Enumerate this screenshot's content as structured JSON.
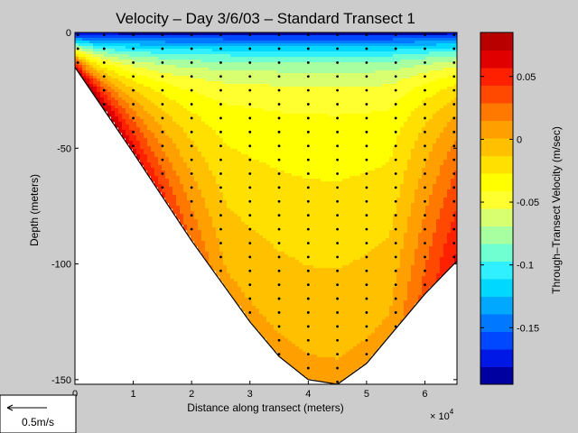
{
  "chart_data": {
    "type": "heatmap",
    "title": "Velocity – Day 3/6/03 – Standard Transect 1",
    "xlabel": "Distance along transect (meters)",
    "ylabel": "Depth (meters)",
    "x_multiplier_label": "× 10",
    "x_multiplier_exponent": "4",
    "xlim": [
      0,
      6.55
    ],
    "ylim": [
      -152,
      0
    ],
    "xticks": [
      0,
      1,
      2,
      3,
      4,
      5,
      6
    ],
    "xtick_labels": [
      "0",
      "1",
      "2",
      "3",
      "4",
      "5",
      "6"
    ],
    "yticks": [
      0,
      -50,
      -100,
      -150
    ],
    "ytick_labels": [
      "0",
      "-50",
      "-100",
      "-150"
    ],
    "colorbar": {
      "label": "Through–Transect Velocity (m/sec)",
      "range": [
        -0.195,
        0.085
      ],
      "ticks": [
        0.05,
        0,
        -0.05,
        -0.1,
        -0.15
      ],
      "tick_labels": [
        "0.05",
        "0",
        "-0.05",
        "-0.1",
        "-0.15"
      ],
      "levels": [
        "#0000a0",
        "#0018e6",
        "#0048ff",
        "#0078ff",
        "#00a8ff",
        "#00d8ff",
        "#30f0ff",
        "#70ffd0",
        "#a8ffa0",
        "#d8ff70",
        "#ffff30",
        "#ffff00",
        "#ffe000",
        "#ffc000",
        "#ffa000",
        "#ff7800",
        "#ff4800",
        "#ff2000",
        "#e00000",
        "#b80000"
      ]
    },
    "bottom_profile": [
      [
        0,
        -15
      ],
      [
        1,
        -52
      ],
      [
        2,
        -90
      ],
      [
        3,
        -125
      ],
      [
        3.5,
        -140
      ],
      [
        4,
        -150
      ],
      [
        4.5,
        -152
      ],
      [
        5,
        -143
      ],
      [
        5.5,
        -128
      ],
      [
        6,
        -113
      ],
      [
        6.5,
        -100
      ],
      [
        6.55,
        -99
      ]
    ],
    "station_x": [
      0.05,
      0.5,
      1,
      1.5,
      2,
      2.5,
      3,
      3.5,
      4,
      4.5,
      5,
      5.5,
      6,
      6.5
    ],
    "scale_arrow_label": "0.5m/s",
    "grid": false
  }
}
